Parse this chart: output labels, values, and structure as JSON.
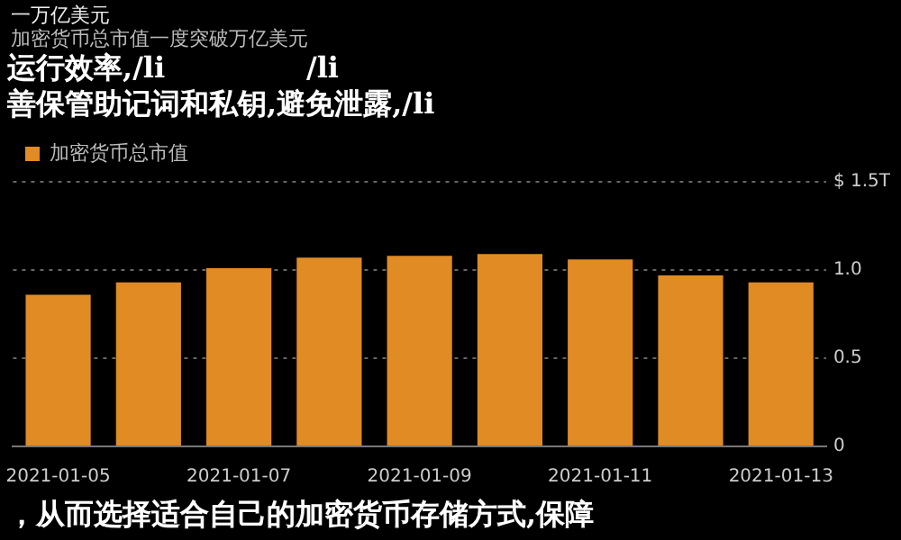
{
  "chart_data": {
    "type": "bar",
    "title": "一万亿美元",
    "subtitle": "加密货币总市值一度突破万亿美元",
    "categories": [
      "2021-01-05",
      null,
      "2021-01-07",
      null,
      "2021-01-09",
      null,
      "2021-01-11",
      null,
      "2021-01-13"
    ],
    "series": [
      {
        "name": "加密货币总市值",
        "color": "#e08b24",
        "values": [
          0.86,
          0.93,
          1.01,
          1.07,
          1.08,
          1.09,
          1.06,
          0.97,
          0.93
        ]
      }
    ],
    "ylim": [
      0,
      1.5
    ],
    "yticks": [
      0,
      0.5,
      {
        "value": 1,
        "label": "1.0"
      },
      {
        "value": 1.5,
        "label": "$ 1.5T"
      }
    ],
    "grid": "y",
    "legend": "top left",
    "annotations": [
      "运行效率,/li",
      "/li",
      "善保管助记词和私钥,避免泄露,/li",
      "，从而选择适合自己的加密货币存储方式,保障"
    ]
  }
}
